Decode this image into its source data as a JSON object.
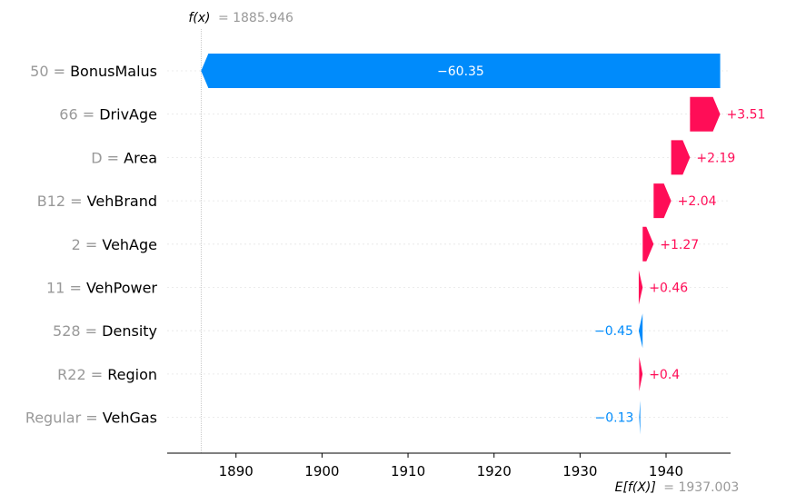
{
  "header": {
    "fx_label": "f(x)",
    "fx_value": "= 1885.946"
  },
  "footer": {
    "ex_label": "E[f(X)]",
    "ex_value": "= 1937.003"
  },
  "colors": {
    "positive": "#ff0d57",
    "negative": "#008bfb",
    "feature_value": "#999999",
    "feature_name": "#000000",
    "grid": "#e6e6e6"
  },
  "chart_data": {
    "type": "bar",
    "subtype": "waterfall",
    "base_value": 1937.003,
    "output_value": 1885.946,
    "xlim": [
      1882,
      1947.5
    ],
    "xticks": [
      1890,
      1900,
      1910,
      1920,
      1930,
      1940
    ],
    "grid": true,
    "features": [
      {
        "value": "50",
        "name": "BonusMalus",
        "shap": -60.35,
        "label": "−60.35"
      },
      {
        "value": "66",
        "name": "DrivAge",
        "shap": 3.51,
        "label": "+3.51"
      },
      {
        "value": "D",
        "name": "Area",
        "shap": 2.19,
        "label": "+2.19"
      },
      {
        "value": "B12",
        "name": "VehBrand",
        "shap": 2.04,
        "label": "+2.04"
      },
      {
        "value": "2",
        "name": "VehAge",
        "shap": 1.27,
        "label": "+1.27"
      },
      {
        "value": "11",
        "name": "VehPower",
        "shap": 0.46,
        "label": "+0.46"
      },
      {
        "value": "528",
        "name": "Density",
        "shap": -0.45,
        "label": "−0.45"
      },
      {
        "value": "R22",
        "name": "Region",
        "shap": 0.4,
        "label": "+0.4"
      },
      {
        "value": "Regular",
        "name": "VehGas",
        "shap": -0.13,
        "label": "−0.13"
      }
    ]
  }
}
